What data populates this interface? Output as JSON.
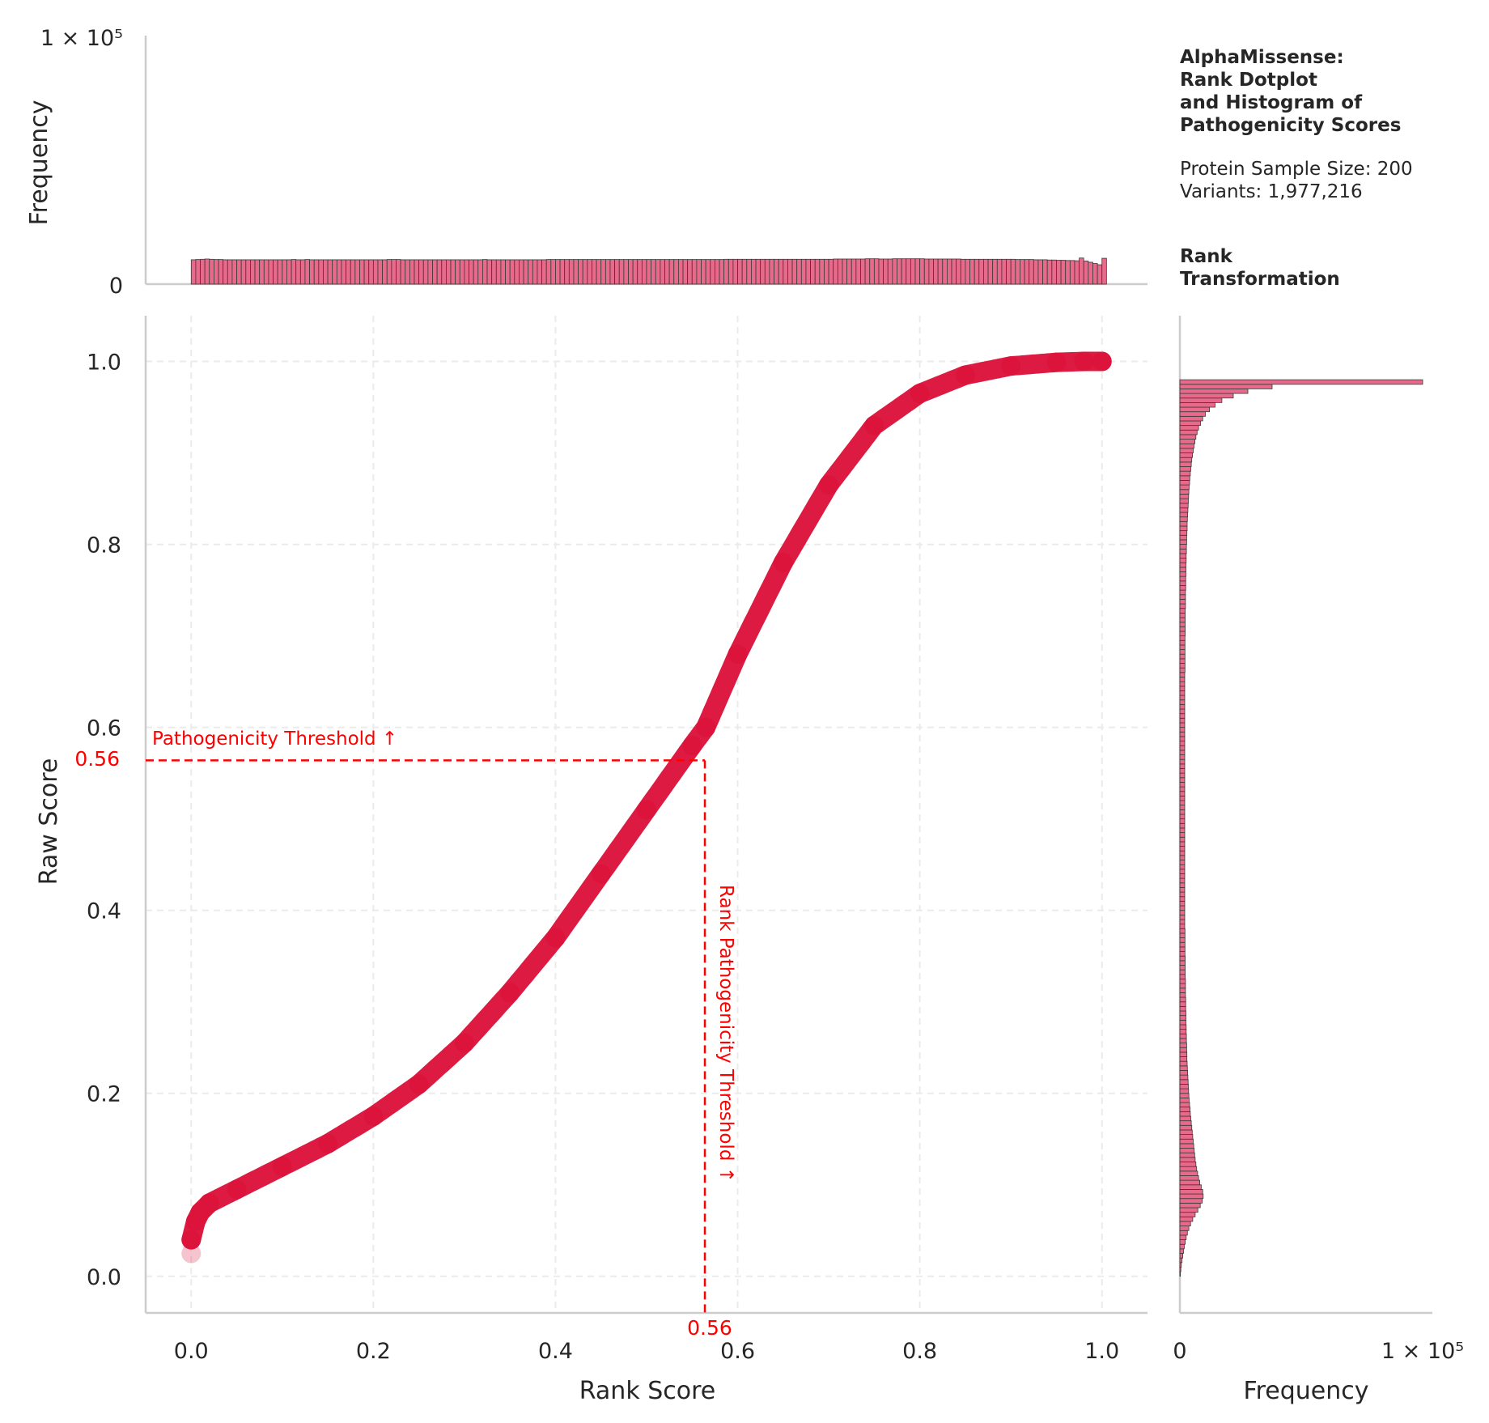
{
  "info": {
    "title_lines": [
      "AlphaMissense:",
      "Rank Dotplot",
      "and Histogram of",
      "Pathogenicity Scores"
    ],
    "sample_size": "Protein Sample Size: 200",
    "variants": "Variants: 1,977,216",
    "section_lines": [
      "Rank",
      "Transformation"
    ]
  },
  "colors": {
    "dots": "#dc143c",
    "hist_fill": "#e8698a",
    "hist_edge": "#3a3a3a",
    "threshold": "#ff0000",
    "axis": "#cccccc",
    "grid": "#ebebeb"
  },
  "chart_data": [
    {
      "type": "scatter",
      "title": "",
      "xlabel": "Rank Score",
      "ylabel": "Raw Score",
      "xlim": [
        -0.05,
        1.05
      ],
      "ylim": [
        -0.04,
        1.05
      ],
      "xticks": [
        "0.0",
        "0.2",
        "0.4",
        "0.6",
        "0.8",
        "1.0"
      ],
      "yticks": [
        "0.0",
        "0.2",
        "0.4",
        "0.6",
        "0.8",
        "1.0"
      ],
      "grid": true,
      "series": [
        {
          "x": [
            0.0,
            0.005,
            0.01,
            0.02,
            0.05,
            0.1,
            0.15,
            0.2,
            0.25,
            0.3,
            0.35,
            0.4,
            0.45,
            0.5,
            0.55,
            0.565,
            0.6,
            0.65,
            0.7,
            0.75,
            0.8,
            0.85,
            0.9,
            0.95,
            0.98,
            1.0
          ],
          "y": [
            0.04,
            0.06,
            0.07,
            0.08,
            0.095,
            0.12,
            0.145,
            0.175,
            0.21,
            0.255,
            0.31,
            0.37,
            0.44,
            0.51,
            0.58,
            0.6,
            0.68,
            0.78,
            0.865,
            0.93,
            0.965,
            0.985,
            0.995,
            0.999,
            1.0,
            1.0
          ]
        }
      ],
      "annotations": {
        "h_threshold_label": "Pathogenicity Threshold ↑",
        "h_threshold_value": "0.56",
        "v_threshold_label": "Rank Pathogenicity Threshold ↑",
        "v_threshold_value": "0.56",
        "raw_threshold": 0.564,
        "rank_threshold": 0.564
      }
    },
    {
      "type": "bar",
      "title": "",
      "xlabel": "",
      "ylabel": "Frequency",
      "ylim": [
        0,
        100000
      ],
      "ytick_top": "1 × 10⁵",
      "ytick_bottom": "0",
      "bins": 200,
      "x_range": [
        0,
        1
      ],
      "values": [
        9800,
        9900,
        10000,
        10100,
        10000,
        9900,
        9900,
        9800,
        9800,
        9800,
        9800,
        9800,
        9800,
        9800,
        9800,
        9800,
        9800,
        9800,
        9800,
        9800,
        9800,
        9800,
        9900,
        9800,
        9800,
        9900,
        9800,
        9800,
        9800,
        9800,
        9800,
        9800,
        9800,
        9800,
        9800,
        9800,
        9800,
        9800,
        9800,
        9800,
        9800,
        9800,
        9800,
        9900,
        9900,
        9900,
        9800,
        9800,
        9800,
        9800,
        9800,
        9800,
        9800,
        9800,
        9800,
        9800,
        9800,
        9800,
        9800,
        9800,
        9800,
        9800,
        9800,
        9800,
        9900,
        9800,
        9800,
        9800,
        9800,
        9800,
        9800,
        9800,
        9800,
        9800,
        9800,
        9800,
        9800,
        9800,
        9900,
        9900,
        9900,
        9900,
        9900,
        9900,
        9900,
        9900,
        9900,
        9900,
        9900,
        9900,
        9900,
        9900,
        9900,
        9900,
        9900,
        9900,
        9900,
        9900,
        9900,
        9900,
        9900,
        9900,
        9900,
        9900,
        9900,
        9900,
        9900,
        9900,
        9900,
        9900,
        9900,
        9900,
        9900,
        9900,
        9900,
        9900,
        9900,
        10000,
        10000,
        10000,
        10000,
        10000,
        10000,
        10000,
        10000,
        10000,
        10000,
        10000,
        10000,
        10000,
        10000,
        10000,
        10000,
        10000,
        10000,
        10000,
        10000,
        10000,
        10000,
        10000,
        10000,
        10100,
        10100,
        10100,
        10100,
        10100,
        10100,
        10100,
        10200,
        10200,
        10200,
        10100,
        10100,
        10100,
        10200,
        10200,
        10200,
        10200,
        10200,
        10200,
        10200,
        10100,
        10100,
        10100,
        10100,
        10100,
        10100,
        10100,
        10100,
        10000,
        10000,
        10000,
        10000,
        10000,
        10000,
        10000,
        10000,
        10000,
        10000,
        10000,
        10000,
        9900,
        9900,
        9900,
        9900,
        9800,
        9800,
        9800,
        9700,
        9700,
        9600,
        9600,
        9500,
        9500,
        9400,
        10500,
        9300,
        8800,
        8300,
        7800,
        10400
      ]
    },
    {
      "type": "bar",
      "title": "",
      "xlabel": "Frequency",
      "ylabel": "",
      "xlim": [
        0,
        100000
      ],
      "xtick_left": "0",
      "xtick_right": "1 × 10⁵",
      "orientation": "horizontal",
      "bins": 200,
      "y_range": [
        0,
        1
      ],
      "values": [
        200,
        400,
        600,
        900,
        1200,
        1500,
        1800,
        2200,
        2600,
        3100,
        3700,
        4400,
        5300,
        6300,
        7400,
        8400,
        9200,
        9600,
        9400,
        8800,
        8200,
        7700,
        7300,
        6900,
        6600,
        6300,
        6100,
        5900,
        5700,
        5500,
        5300,
        5100,
        4900,
        4700,
        4500,
        4300,
        4200,
        4000,
        3800,
        3700,
        3600,
        3500,
        3400,
        3300,
        3200,
        3100,
        3000,
        2900,
        2900,
        2800,
        2800,
        2700,
        2700,
        2600,
        2600,
        2500,
        2500,
        2500,
        2400,
        2400,
        2400,
        2300,
        2300,
        2300,
        2300,
        2200,
        2200,
        2200,
        2200,
        2200,
        2100,
        2100,
        2100,
        2100,
        2100,
        2100,
        2000,
        2000,
        2000,
        2000,
        2000,
        2000,
        2000,
        2000,
        2000,
        2000,
        2000,
        2000,
        2000,
        2000,
        2000,
        2000,
        2000,
        2000,
        2000,
        2000,
        2000,
        2000,
        2000,
        2000,
        2000,
        2000,
        2000,
        2000,
        2000,
        2000,
        2000,
        2000,
        2000,
        2000,
        2000,
        2000,
        2000,
        2000,
        2000,
        2000,
        2000,
        2000,
        2000,
        2000,
        2000,
        2000,
        2000,
        2000,
        2000,
        2000,
        2000,
        2000,
        2000,
        2000,
        2000,
        2000,
        2100,
        2100,
        2100,
        2100,
        2100,
        2100,
        2100,
        2100,
        2200,
        2200,
        2200,
        2200,
        2200,
        2200,
        2300,
        2300,
        2300,
        2300,
        2400,
        2400,
        2400,
        2500,
        2500,
        2500,
        2600,
        2600,
        2700,
        2700,
        2800,
        2800,
        2900,
        3000,
        3000,
        3100,
        3200,
        3300,
        3400,
        3500,
        3600,
        3700,
        3800,
        4000,
        4100,
        4300,
        4500,
        4700,
        4900,
        5200,
        5500,
        5800,
        6200,
        6600,
        7100,
        7700,
        8500,
        9400,
        10500,
        12200,
        14500,
        17300,
        22000,
        28000,
        38000,
        100000
      ]
    }
  ]
}
